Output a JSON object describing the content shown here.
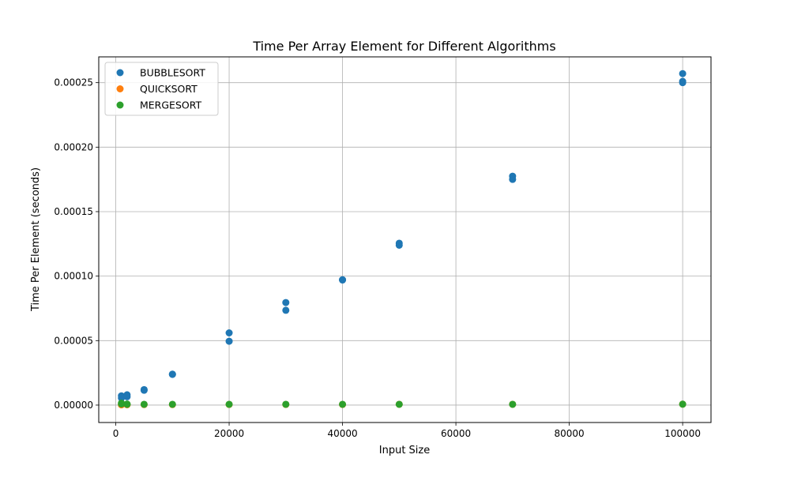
{
  "chart_data": {
    "type": "scatter",
    "title": "Time Per Array Element for Different Algorithms",
    "xlabel": "Input Size",
    "ylabel": "Time Per Element (seconds)",
    "xlim": [
      -3000,
      105000
    ],
    "ylim": [
      -1.35e-05,
      0.00027
    ],
    "x_ticks": [
      0,
      20000,
      40000,
      60000,
      80000,
      100000
    ],
    "x_tick_labels": [
      "0",
      "20000",
      "40000",
      "60000",
      "80000",
      "100000"
    ],
    "y_ticks": [
      0.0,
      5e-05,
      0.0001,
      0.00015,
      0.0002,
      0.00025
    ],
    "y_tick_labels": [
      "0.00000",
      "0.00005",
      "0.00010",
      "0.00015",
      "0.00020",
      "0.00025"
    ],
    "grid": true,
    "legend_position": "top-left",
    "series": [
      {
        "name": "BUBBLESORT",
        "color": "#1f77b4",
        "points": [
          [
            1000,
            7.2e-06
          ],
          [
            1000,
            5.5e-06
          ],
          [
            2000,
            8e-06
          ],
          [
            2000,
            6.5e-06
          ],
          [
            5000,
            1.2e-05
          ],
          [
            5000,
            1.15e-05
          ],
          [
            10000,
            2.4e-05
          ],
          [
            10000,
            2.38e-05
          ],
          [
            20000,
            5.6e-05
          ],
          [
            20000,
            4.95e-05
          ],
          [
            30000,
            7.95e-05
          ],
          [
            30000,
            7.35e-05
          ],
          [
            40000,
            9.72e-05
          ],
          [
            40000,
            9.7e-05
          ],
          [
            50000,
            0.0001255
          ],
          [
            50000,
            0.000124
          ],
          [
            70000,
            0.0001775
          ],
          [
            70000,
            0.000175
          ],
          [
            100000,
            0.000257
          ],
          [
            100000,
            0.000251
          ],
          [
            100000,
            0.00025
          ]
        ]
      },
      {
        "name": "QUICKSORT",
        "color": "#ff7f0e",
        "points": [
          [
            1000,
            3e-07
          ],
          [
            1000,
            2e-07
          ],
          [
            2000,
            4e-07
          ],
          [
            2000,
            3e-07
          ],
          [
            5000,
            4e-07
          ],
          [
            10000,
            4e-07
          ],
          [
            20000,
            5e-07
          ],
          [
            30000,
            5e-07
          ],
          [
            40000,
            5e-07
          ],
          [
            50000,
            6e-07
          ],
          [
            70000,
            6e-07
          ],
          [
            100000,
            7e-07
          ]
        ]
      },
      {
        "name": "MERGESORT",
        "color": "#2ca02c",
        "points": [
          [
            1000,
            1.5e-06
          ],
          [
            1000,
            9e-07
          ],
          [
            2000,
            8e-07
          ],
          [
            2000,
            6e-07
          ],
          [
            5000,
            6e-07
          ],
          [
            10000,
            6e-07
          ],
          [
            20000,
            6e-07
          ],
          [
            30000,
            6e-07
          ],
          [
            40000,
            6e-07
          ],
          [
            50000,
            6e-07
          ],
          [
            70000,
            6e-07
          ],
          [
            100000,
            7e-07
          ]
        ]
      }
    ]
  }
}
